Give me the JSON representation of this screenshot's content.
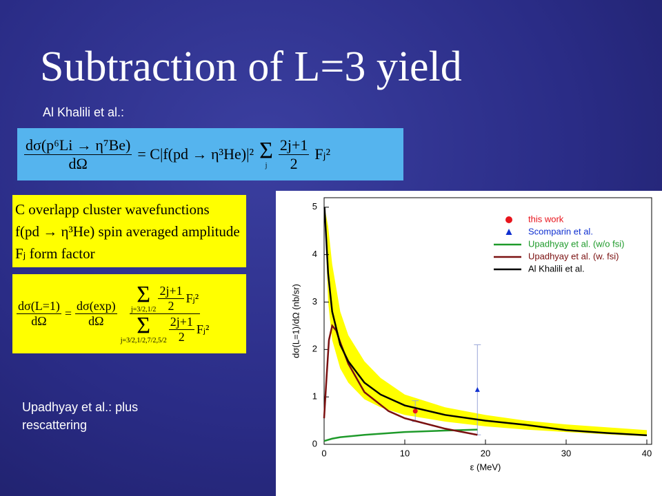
{
  "slide": {
    "title": "Subtraction of L=3 yield",
    "subtitle": "Al Khalili et al.:",
    "note": [
      "Upadhyay et al.: plus",
      "rescattering"
    ],
    "eq1": {
      "lhs_num": "dσ(p⁶Li → η⁷Be)",
      "lhs_den": "dΩ",
      "mid": "= C|f(pd → η³He)|²",
      "sum": "Σ",
      "sum_index": "j",
      "term_num": "2j+1",
      "term_den": "2",
      "term_tail": "Fⱼ²"
    },
    "definitions": [
      "C overlapp cluster wavefunctions",
      "f(pd → η³He) spin averaged amplitude",
      "Fⱼ form factor"
    ],
    "eq2": {
      "lhs_num": "dσ(L=1)",
      "lhs_den": "dΩ",
      "eq": "=",
      "rhs_num": "dσ(exp)",
      "rhs_den": "dΩ",
      "sum": "Σ",
      "top_index": "j=3/2,1/2",
      "bottom_index": "j=3/2,1/2,7/2,5/2",
      "term_num": "2j+1",
      "term_den": "2",
      "term_tail": "Fⱼ²"
    }
  },
  "chart_data": {
    "type": "line",
    "xlabel": "ε (MeV)",
    "ylabel": "dσ(L=1)/dΩ (nb/sr)",
    "xlim": [
      0,
      40
    ],
    "ylim": [
      0,
      5.2
    ],
    "xticks": [
      0,
      10,
      20,
      30,
      40
    ],
    "yticks": [
      0,
      1,
      2,
      3,
      4,
      5
    ],
    "legend": "upper right",
    "band": {
      "color": "#ffff00",
      "x": [
        0.05,
        0.5,
        1,
        2,
        3,
        5,
        7,
        10,
        15,
        20,
        25,
        30,
        35,
        40
      ],
      "upper": [
        5,
        4.6,
        3.8,
        2.8,
        2.3,
        1.75,
        1.4,
        1.05,
        0.78,
        0.62,
        0.5,
        0.42,
        0.36,
        0.3
      ],
      "lower": [
        5,
        3.0,
        2.2,
        1.6,
        1.3,
        0.95,
        0.78,
        0.62,
        0.48,
        0.38,
        0.31,
        0.26,
        0.21,
        0.17
      ]
    },
    "series": [
      {
        "name": "this work",
        "color": "#e8141c",
        "marker": "circle",
        "x": [
          11.3
        ],
        "values": [
          0.7
        ],
        "error": [
          0.22
        ]
      },
      {
        "name": "Scomparin et al.",
        "color": "#1030d0",
        "marker": "triangle",
        "x": [
          19
        ],
        "values": [
          1.15
        ],
        "error": [
          0.95
        ]
      },
      {
        "name": "Upadhyay et al. (w/o fsi)",
        "color": "#1e9a2a",
        "x": [
          0,
          1,
          2,
          5,
          10,
          15,
          19
        ],
        "values": [
          0.07,
          0.12,
          0.15,
          0.2,
          0.26,
          0.29,
          0.31
        ]
      },
      {
        "name": "Upadhyay et al. (w. fsi)",
        "color": "#7a1010",
        "x": [
          0,
          0.3,
          0.6,
          1,
          1.5,
          2,
          3,
          5,
          8,
          10,
          15,
          19
        ],
        "values": [
          0.55,
          1.4,
          2.2,
          2.5,
          2.4,
          2.15,
          1.7,
          1.1,
          0.7,
          0.55,
          0.33,
          0.2
        ]
      },
      {
        "name": "Al Khalili et al.",
        "color": "#000000",
        "x": [
          0.05,
          0.5,
          1,
          2,
          3,
          5,
          7,
          10,
          15,
          20,
          25,
          30,
          35,
          40
        ],
        "values": [
          5,
          3.6,
          2.8,
          2.1,
          1.75,
          1.3,
          1.05,
          0.82,
          0.62,
          0.5,
          0.41,
          0.3,
          0.24,
          0.19
        ]
      }
    ]
  }
}
